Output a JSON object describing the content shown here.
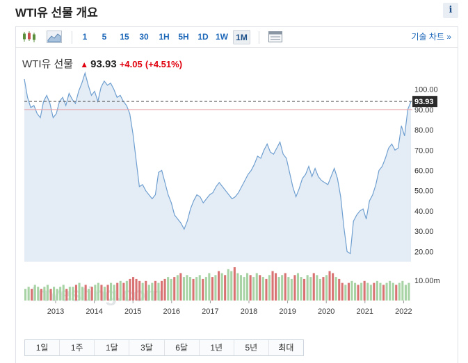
{
  "page": {
    "title": "WTI유 선물 개요",
    "info_label": "i"
  },
  "toolbar": {
    "chart_type_icons": [
      "candlestick-icon",
      "area-chart-icon"
    ],
    "intervals": [
      "1",
      "5",
      "15",
      "30",
      "1H",
      "5H",
      "1D",
      "1W",
      "1M"
    ],
    "active_interval": "1M",
    "settings_icon": "table-settings-icon",
    "tech_chart_label": "기술 차트 »"
  },
  "quote": {
    "name": "WTI유 선물",
    "price": "93.93",
    "change": "+4.05",
    "change_pct": "(+4.51%)"
  },
  "chart_data": {
    "type": "area",
    "title": "",
    "xlabel": "",
    "ylabel": "",
    "x_ticks": [
      "2013",
      "2014",
      "2015",
      "2016",
      "2017",
      "2018",
      "2019",
      "2020",
      "2021",
      "2022"
    ],
    "y_ticks": [
      "100.00",
      "90.00",
      "80.00",
      "70.00",
      "60.00",
      "50.00",
      "40.00",
      "30.00",
      "20.00"
    ],
    "ylim": [
      15,
      105
    ],
    "volume_label": "10.00m",
    "last_value_label": "93.93",
    "reference_value": 90,
    "colors": {
      "line": "#6f9fd0",
      "fill": "#e4edf6",
      "vol_up": "#a7d3a5",
      "vol_down": "#d97373",
      "ref": "#e8a0a4"
    },
    "series": [
      {
        "values": [
          105,
          96,
          91,
          92,
          88,
          86,
          94,
          97,
          93,
          86,
          88,
          94,
          96,
          92,
          98,
          95,
          93,
          99,
          103,
          108,
          102,
          97,
          99,
          94,
          101,
          104,
          102,
          103,
          100,
          96,
          97,
          94,
          92,
          88,
          78,
          65,
          52,
          53,
          50,
          48,
          46,
          48,
          59,
          60,
          54,
          48,
          44,
          38,
          36,
          34,
          31,
          35,
          41,
          45,
          48,
          47,
          44,
          46,
          48,
          49,
          52,
          54,
          52,
          50,
          48,
          46,
          47,
          49,
          52,
          55,
          58,
          60,
          63,
          67,
          66,
          70,
          73,
          69,
          68,
          71,
          74,
          68,
          66,
          59,
          52,
          47,
          51,
          56,
          58,
          62,
          57,
          61,
          57,
          55,
          54,
          53,
          57,
          61,
          56,
          47,
          32,
          20,
          19,
          35,
          38,
          40,
          41,
          36,
          45,
          48,
          53,
          60,
          62,
          66,
          71,
          73,
          70,
          71,
          82,
          77,
          90,
          94
        ]
      }
    ],
    "volume": [
      {
        "v": 6,
        "up": true
      },
      {
        "v": 7,
        "up": true
      },
      {
        "v": 6,
        "up": false
      },
      {
        "v": 8,
        "up": true
      },
      {
        "v": 7,
        "up": true
      },
      {
        "v": 6,
        "up": false
      },
      {
        "v": 7,
        "up": true
      },
      {
        "v": 8,
        "up": true
      },
      {
        "v": 6,
        "up": false
      },
      {
        "v": 7,
        "up": true
      },
      {
        "v": 6,
        "up": true
      },
      {
        "v": 7,
        "up": true
      },
      {
        "v": 8,
        "up": true
      },
      {
        "v": 6,
        "up": false
      },
      {
        "v": 7,
        "up": true
      },
      {
        "v": 7,
        "up": true
      },
      {
        "v": 8,
        "up": false
      },
      {
        "v": 9,
        "up": true
      },
      {
        "v": 7,
        "up": true
      },
      {
        "v": 8,
        "up": false
      },
      {
        "v": 6,
        "up": true
      },
      {
        "v": 7,
        "up": false
      },
      {
        "v": 8,
        "up": true
      },
      {
        "v": 9,
        "up": true
      },
      {
        "v": 8,
        "up": false
      },
      {
        "v": 7,
        "up": true
      },
      {
        "v": 8,
        "up": false
      },
      {
        "v": 9,
        "up": true
      },
      {
        "v": 8,
        "up": true
      },
      {
        "v": 9,
        "up": false
      },
      {
        "v": 10,
        "up": true
      },
      {
        "v": 9,
        "up": false
      },
      {
        "v": 10,
        "up": true
      },
      {
        "v": 11,
        "up": false
      },
      {
        "v": 12,
        "up": false
      },
      {
        "v": 11,
        "up": false
      },
      {
        "v": 10,
        "up": false
      },
      {
        "v": 9,
        "up": true
      },
      {
        "v": 10,
        "up": false
      },
      {
        "v": 8,
        "up": true
      },
      {
        "v": 9,
        "up": true
      },
      {
        "v": 10,
        "up": false
      },
      {
        "v": 9,
        "up": true
      },
      {
        "v": 10,
        "up": false
      },
      {
        "v": 11,
        "up": false
      },
      {
        "v": 12,
        "up": true
      },
      {
        "v": 11,
        "up": true
      },
      {
        "v": 12,
        "up": false
      },
      {
        "v": 13,
        "up": true
      },
      {
        "v": 14,
        "up": false
      },
      {
        "v": 12,
        "up": true
      },
      {
        "v": 13,
        "up": true
      },
      {
        "v": 12,
        "up": true
      },
      {
        "v": 11,
        "up": false
      },
      {
        "v": 12,
        "up": true
      },
      {
        "v": 13,
        "up": true
      },
      {
        "v": 11,
        "up": false
      },
      {
        "v": 12,
        "up": true
      },
      {
        "v": 14,
        "up": true
      },
      {
        "v": 12,
        "up": false
      },
      {
        "v": 13,
        "up": true
      },
      {
        "v": 15,
        "up": false
      },
      {
        "v": 14,
        "up": true
      },
      {
        "v": 13,
        "up": false
      },
      {
        "v": 16,
        "up": true
      },
      {
        "v": 15,
        "up": true
      },
      {
        "v": 17,
        "up": false
      },
      {
        "v": 14,
        "up": true
      },
      {
        "v": 13,
        "up": true
      },
      {
        "v": 12,
        "up": true
      },
      {
        "v": 14,
        "up": true
      },
      {
        "v": 13,
        "up": false
      },
      {
        "v": 12,
        "up": true
      },
      {
        "v": 14,
        "up": true
      },
      {
        "v": 13,
        "up": false
      },
      {
        "v": 12,
        "up": true
      },
      {
        "v": 11,
        "up": false
      },
      {
        "v": 13,
        "up": true
      },
      {
        "v": 15,
        "up": false
      },
      {
        "v": 14,
        "up": false
      },
      {
        "v": 12,
        "up": true
      },
      {
        "v": 13,
        "up": true
      },
      {
        "v": 14,
        "up": false
      },
      {
        "v": 12,
        "up": true
      },
      {
        "v": 11,
        "up": true
      },
      {
        "v": 13,
        "up": false
      },
      {
        "v": 14,
        "up": true
      },
      {
        "v": 12,
        "up": true
      },
      {
        "v": 11,
        "up": false
      },
      {
        "v": 13,
        "up": true
      },
      {
        "v": 12,
        "up": true
      },
      {
        "v": 14,
        "up": false
      },
      {
        "v": 13,
        "up": true
      },
      {
        "v": 11,
        "up": true
      },
      {
        "v": 12,
        "up": false
      },
      {
        "v": 13,
        "up": true
      },
      {
        "v": 15,
        "up": false
      },
      {
        "v": 14,
        "up": false
      },
      {
        "v": 12,
        "up": true
      },
      {
        "v": 11,
        "up": false
      },
      {
        "v": 9,
        "up": false
      },
      {
        "v": 8,
        "up": true
      },
      {
        "v": 9,
        "up": false
      },
      {
        "v": 10,
        "up": true
      },
      {
        "v": 9,
        "up": true
      },
      {
        "v": 8,
        "up": false
      },
      {
        "v": 9,
        "up": true
      },
      {
        "v": 10,
        "up": false
      },
      {
        "v": 9,
        "up": true
      },
      {
        "v": 8,
        "up": true
      },
      {
        "v": 9,
        "up": false
      },
      {
        "v": 10,
        "up": true
      },
      {
        "v": 9,
        "up": true
      },
      {
        "v": 8,
        "up": false
      },
      {
        "v": 9,
        "up": true
      },
      {
        "v": 10,
        "up": true
      },
      {
        "v": 9,
        "up": true
      },
      {
        "v": 8,
        "up": false
      },
      {
        "v": 9,
        "up": true
      },
      {
        "v": 10,
        "up": true
      },
      {
        "v": 8,
        "up": true
      },
      {
        "v": 9,
        "up": true
      }
    ],
    "watermark": "Investing.com"
  },
  "range_buttons": [
    "1일",
    "1주",
    "1달",
    "3달",
    "6달",
    "1년",
    "5년",
    "최대"
  ]
}
